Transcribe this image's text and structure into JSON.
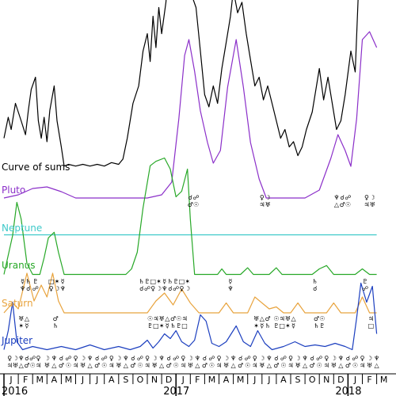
{
  "chart_data": {
    "type": "line",
    "x_axis": {
      "months": [
        "J",
        "F",
        "M",
        "A",
        "M",
        "J",
        "J",
        "A",
        "S",
        "O",
        "N",
        "D",
        "J",
        "F",
        "M",
        "A",
        "M",
        "J",
        "J",
        "A",
        "S",
        "O",
        "N",
        "D",
        "J",
        "F",
        "M"
      ],
      "years": [
        "2016",
        "2017",
        "2018"
      ],
      "year_month_index": [
        0,
        12,
        24
      ]
    },
    "series": [
      {
        "name": "Curve of sums",
        "color": "#000000",
        "base": 0.437,
        "scale": 0.44,
        "points": [
          [
            0,
            0.2
          ],
          [
            0.3,
            0.32
          ],
          [
            0.5,
            0.25
          ],
          [
            0.8,
            0.4
          ],
          [
            1.2,
            0.3
          ],
          [
            1.5,
            0.22
          ],
          [
            1.7,
            0.36
          ],
          [
            1.9,
            0.48
          ],
          [
            2.2,
            0.55
          ],
          [
            2.4,
            0.3
          ],
          [
            2.6,
            0.2
          ],
          [
            2.8,
            0.32
          ],
          [
            3.0,
            0.18
          ],
          [
            3.2,
            0.36
          ],
          [
            3.5,
            0.5
          ],
          [
            3.7,
            0.3
          ],
          [
            4.0,
            0.15
          ],
          [
            4.2,
            0.04
          ],
          [
            4.5,
            0.05
          ],
          [
            5,
            0.04
          ],
          [
            5.5,
            0.05
          ],
          [
            6,
            0.04
          ],
          [
            6.5,
            0.05
          ],
          [
            7,
            0.04
          ],
          [
            7.5,
            0.06
          ],
          [
            8,
            0.05
          ],
          [
            8.3,
            0.08
          ],
          [
            8.6,
            0.2
          ],
          [
            9,
            0.4
          ],
          [
            9.4,
            0.5
          ],
          [
            9.7,
            0.7
          ],
          [
            10,
            0.8
          ],
          [
            10.2,
            0.64
          ],
          [
            10.4,
            0.9
          ],
          [
            10.6,
            0.72
          ],
          [
            10.8,
            0.95
          ],
          [
            11,
            0.8
          ],
          [
            11.3,
            0.98
          ],
          [
            11.6,
            1.3
          ],
          [
            12,
            1.6
          ],
          [
            12.3,
            1.35
          ],
          [
            12.6,
            1.1
          ],
          [
            12.9,
            1.3
          ],
          [
            13.1,
            1.02
          ],
          [
            13.4,
            0.95
          ],
          [
            13.7,
            0.7
          ],
          [
            14,
            0.45
          ],
          [
            14.3,
            0.38
          ],
          [
            14.6,
            0.5
          ],
          [
            14.9,
            0.4
          ],
          [
            15.2,
            0.6
          ],
          [
            15.5,
            0.75
          ],
          [
            15.8,
            0.9
          ],
          [
            16,
            1.05
          ],
          [
            16.3,
            0.92
          ],
          [
            16.6,
            0.98
          ],
          [
            16.9,
            0.8
          ],
          [
            17.2,
            0.65
          ],
          [
            17.5,
            0.5
          ],
          [
            17.8,
            0.55
          ],
          [
            18.1,
            0.42
          ],
          [
            18.4,
            0.5
          ],
          [
            18.7,
            0.4
          ],
          [
            19,
            0.3
          ],
          [
            19.3,
            0.2
          ],
          [
            19.6,
            0.25
          ],
          [
            19.9,
            0.15
          ],
          [
            20.2,
            0.18
          ],
          [
            20.5,
            0.1
          ],
          [
            20.8,
            0.15
          ],
          [
            21.1,
            0.25
          ],
          [
            21.5,
            0.35
          ],
          [
            21.8,
            0.5
          ],
          [
            22,
            0.6
          ],
          [
            22.3,
            0.42
          ],
          [
            22.6,
            0.55
          ],
          [
            22.9,
            0.4
          ],
          [
            23.2,
            0.25
          ],
          [
            23.5,
            0.3
          ],
          [
            23.8,
            0.45
          ],
          [
            24.2,
            0.7
          ],
          [
            24.5,
            0.58
          ],
          [
            24.8,
            1.2
          ],
          [
            25.1,
            1.5
          ],
          [
            25.4,
            1.35
          ],
          [
            25.7,
            1.1
          ],
          [
            26,
            1.25
          ]
        ]
      },
      {
        "name": "Pluto",
        "color": "#8b2fc9",
        "base": 0.5,
        "scale": 0.4,
        "points": [
          [
            0,
            0.0
          ],
          [
            1,
            0.02
          ],
          [
            2,
            0.06
          ],
          [
            3,
            0.07
          ],
          [
            4,
            0.04
          ],
          [
            5,
            0.0
          ],
          [
            9,
            0.0
          ],
          [
            10,
            0.0
          ],
          [
            11,
            0.02
          ],
          [
            11.7,
            0.1
          ],
          [
            12.2,
            0.5
          ],
          [
            12.6,
            0.9
          ],
          [
            12.9,
            1.0
          ],
          [
            13.3,
            0.8
          ],
          [
            13.7,
            0.55
          ],
          [
            14.2,
            0.35
          ],
          [
            14.6,
            0.22
          ],
          [
            15.1,
            0.3
          ],
          [
            15.6,
            0.7
          ],
          [
            16.2,
            1.0
          ],
          [
            16.7,
            0.7
          ],
          [
            17.2,
            0.35
          ],
          [
            17.8,
            0.12
          ],
          [
            18.3,
            0.0
          ],
          [
            21,
            0.0
          ],
          [
            22,
            0.05
          ],
          [
            22.8,
            0.25
          ],
          [
            23.3,
            0.4
          ],
          [
            23.8,
            0.3
          ],
          [
            24.2,
            0.2
          ],
          [
            24.6,
            0.5
          ],
          [
            25,
            1.0
          ],
          [
            25.5,
            1.05
          ],
          [
            26,
            0.95
          ]
        ]
      },
      {
        "name": "Neptune",
        "color": "#3ec9c9",
        "base": 0.598,
        "scale": 0.1,
        "points": [
          [
            0,
            0.05
          ],
          [
            10,
            0.05
          ],
          [
            20,
            0.05
          ],
          [
            26,
            0.05
          ]
        ]
      },
      {
        "name": "Uranus",
        "color": "#27a827",
        "base": 0.693,
        "scale": 0.28,
        "points": [
          [
            0,
            0.0
          ],
          [
            0.6,
            0.35
          ],
          [
            0.9,
            0.65
          ],
          [
            1.2,
            0.5
          ],
          [
            1.6,
            0.1
          ],
          [
            2,
            0.0
          ],
          [
            2.5,
            0.0
          ],
          [
            2.8,
            0.15
          ],
          [
            3.1,
            0.33
          ],
          [
            3.5,
            0.38
          ],
          [
            3.8,
            0.2
          ],
          [
            4.2,
            0.0
          ],
          [
            8.5,
            0.0
          ],
          [
            8.9,
            0.05
          ],
          [
            9.3,
            0.2
          ],
          [
            9.7,
            0.6
          ],
          [
            10.2,
            0.98
          ],
          [
            10.6,
            1.02
          ],
          [
            11.2,
            1.05
          ],
          [
            11.6,
            0.95
          ],
          [
            12.0,
            0.7
          ],
          [
            12.4,
            0.75
          ],
          [
            12.8,
            0.95
          ],
          [
            13.0,
            0.5
          ],
          [
            13.3,
            0.0
          ],
          [
            14.9,
            0.0
          ],
          [
            15.2,
            0.05
          ],
          [
            15.5,
            0.0
          ],
          [
            16.5,
            0.0
          ],
          [
            17.0,
            0.06
          ],
          [
            17.4,
            0.0
          ],
          [
            18.5,
            0.0
          ],
          [
            19.0,
            0.06
          ],
          [
            19.4,
            0.0
          ],
          [
            21.5,
            0.0
          ],
          [
            22.0,
            0.05
          ],
          [
            22.5,
            0.08
          ],
          [
            23.0,
            0.0
          ],
          [
            24.5,
            0.0
          ],
          [
            25.0,
            0.05
          ],
          [
            25.5,
            0.0
          ],
          [
            26,
            0.0
          ]
        ]
      },
      {
        "name": "Saturn",
        "color": "#e8a33d",
        "base": 0.79,
        "scale": 0.5,
        "points": [
          [
            0,
            0.0
          ],
          [
            0.6,
            0.05
          ],
          [
            1.0,
            0.02
          ],
          [
            1.6,
            0.2
          ],
          [
            2.1,
            0.06
          ],
          [
            2.6,
            0.14
          ],
          [
            3.0,
            0.08
          ],
          [
            3.4,
            0.2
          ],
          [
            3.8,
            0.06
          ],
          [
            4.2,
            0.0
          ],
          [
            10,
            0.0
          ],
          [
            10.6,
            0.06
          ],
          [
            11.2,
            0.1
          ],
          [
            11.8,
            0.04
          ],
          [
            12.4,
            0.12
          ],
          [
            13.0,
            0.05
          ],
          [
            13.6,
            0.0
          ],
          [
            15,
            0.0
          ],
          [
            15.5,
            0.05
          ],
          [
            16.0,
            0.0
          ],
          [
            17.0,
            0.0
          ],
          [
            17.5,
            0.08
          ],
          [
            18.0,
            0.05
          ],
          [
            18.5,
            0.02
          ],
          [
            19.0,
            0.03
          ],
          [
            19.5,
            0.0
          ],
          [
            20,
            0.0
          ],
          [
            20.5,
            0.05
          ],
          [
            21,
            0.0
          ],
          [
            22.5,
            0.0
          ],
          [
            23.0,
            0.05
          ],
          [
            23.5,
            0.0
          ],
          [
            24.5,
            0.0
          ],
          [
            25.0,
            0.08
          ],
          [
            25.5,
            0.0
          ],
          [
            26,
            0.0
          ]
        ]
      },
      {
        "name": "Jupiter",
        "color": "#1c3fbf",
        "base": 0.883,
        "scale": 0.4,
        "points": [
          [
            0,
            0.0
          ],
          [
            0.3,
            0.12
          ],
          [
            0.6,
            0.3
          ],
          [
            0.9,
            0.05
          ],
          [
            1.3,
            0.0
          ],
          [
            2,
            0.02
          ],
          [
            3,
            0.0
          ],
          [
            4,
            0.02
          ],
          [
            5,
            0.0
          ],
          [
            6,
            0.03
          ],
          [
            7,
            0.0
          ],
          [
            8,
            0.02
          ],
          [
            8.8,
            0.0
          ],
          [
            9.5,
            0.02
          ],
          [
            10.0,
            0.06
          ],
          [
            10.4,
            0.01
          ],
          [
            10.8,
            0.05
          ],
          [
            11.2,
            0.1
          ],
          [
            11.6,
            0.07
          ],
          [
            12.0,
            0.12
          ],
          [
            12.4,
            0.05
          ],
          [
            12.9,
            0.02
          ],
          [
            13.3,
            0.06
          ],
          [
            13.7,
            0.22
          ],
          [
            14.1,
            0.18
          ],
          [
            14.5,
            0.04
          ],
          [
            15,
            0.02
          ],
          [
            15.5,
            0.05
          ],
          [
            16.2,
            0.15
          ],
          [
            16.7,
            0.05
          ],
          [
            17.2,
            0.02
          ],
          [
            17.7,
            0.12
          ],
          [
            18.2,
            0.04
          ],
          [
            18.7,
            0.0
          ],
          [
            19.5,
            0.02
          ],
          [
            20.3,
            0.05
          ],
          [
            21,
            0.02
          ],
          [
            21.7,
            0.03
          ],
          [
            22.4,
            0.02
          ],
          [
            23.1,
            0.04
          ],
          [
            23.8,
            0.02
          ],
          [
            24.3,
            0.0
          ],
          [
            24.6,
            0.2
          ],
          [
            24.9,
            0.42
          ],
          [
            25.3,
            0.3
          ],
          [
            25.7,
            0.4
          ],
          [
            26,
            0.1
          ]
        ]
      }
    ],
    "grid": false,
    "legend": "inline-left"
  }
}
